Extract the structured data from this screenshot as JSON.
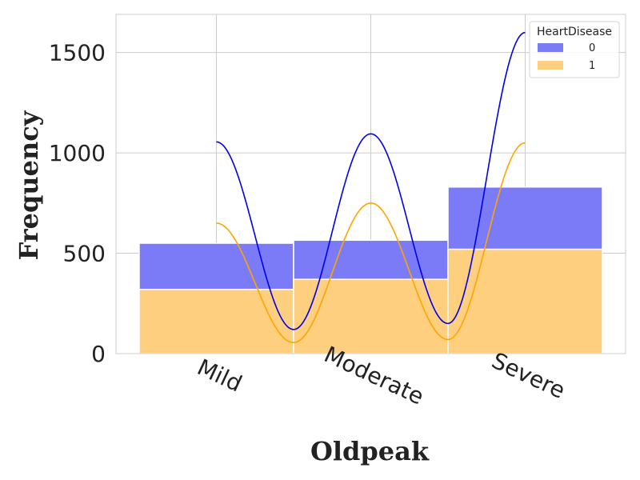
{
  "chart_data": {
    "type": "bar",
    "stacked": true,
    "xlabel": "Oldpeak",
    "ylabel": "Frequency",
    "categories": [
      "Mild",
      "Moderate",
      "Severe"
    ],
    "yticks": [
      "0",
      "500",
      "1000",
      "1500"
    ],
    "ylim": [
      0,
      1690
    ],
    "grid": true,
    "legend": {
      "title": "HeartDisease",
      "placement": "top-right"
    },
    "series": [
      {
        "name": "0",
        "color": "#7b7bf7",
        "values": [
          550,
          565,
          830
        ]
      },
      {
        "name": "1",
        "color": "#fecf7e",
        "values": [
          320,
          370,
          520
        ]
      }
    ],
    "kde": [
      {
        "series": "0",
        "color": "#0000ee",
        "x": [
          0,
          0.5,
          1,
          1.5,
          2
        ],
        "y": [
          1055,
          120,
          1095,
          150,
          1600
        ]
      },
      {
        "series": "1",
        "color": "#ffa500",
        "x": [
          0,
          0.5,
          1,
          1.5,
          2
        ],
        "y": [
          650,
          55,
          750,
          70,
          1050
        ]
      }
    ]
  }
}
